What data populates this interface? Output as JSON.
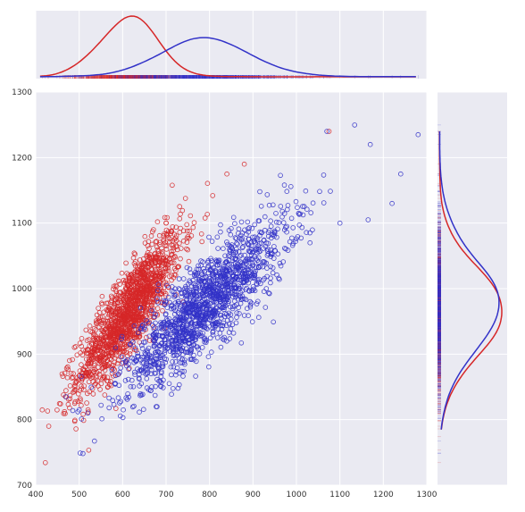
{
  "chart_data": {
    "type": "scatter",
    "subtype": "jointplot",
    "xlim": [
      400,
      1300
    ],
    "ylim": [
      700,
      1300
    ],
    "x_ticks": [
      400,
      500,
      600,
      700,
      800,
      900,
      1000,
      1100,
      1200,
      1300
    ],
    "y_ticks": [
      700,
      800,
      900,
      1000,
      1100,
      1200,
      1300
    ],
    "grid": true,
    "marginals": {
      "top": "kde + rug of x per series",
      "right": "kde + rug of y per series"
    },
    "series": [
      {
        "color": "#d62728",
        "marker": "open-circle",
        "n_points": 1500,
        "x_center": 615,
        "y_center": 965,
        "x_sd": 60,
        "y_sd": 60,
        "correlation": 0.85,
        "x_mode": 610,
        "y_mode": 960,
        "points": [
          [
            430,
            790
          ],
          [
            415,
            815
          ],
          [
            1075,
            1240
          ],
          [
            840,
            1175
          ],
          [
            880,
            1190
          ],
          [
            700,
            1100
          ]
        ]
      },
      {
        "color": "#3232c8",
        "marker": "open-circle",
        "n_points": 1500,
        "x_center": 790,
        "y_center": 975,
        "x_sd": 95,
        "y_sd": 65,
        "correlation": 0.85,
        "x_mode": 755,
        "y_mode": 980,
        "points": [
          [
            1280,
            1235
          ],
          [
            1170,
            1220
          ],
          [
            1070,
            1240
          ],
          [
            1240,
            1175
          ],
          [
            1220,
            1130
          ],
          [
            1100,
            1100
          ],
          [
            1165,
            1105
          ],
          [
            1005,
            1115
          ],
          [
            950,
            1085
          ],
          [
            500,
            815
          ],
          [
            520,
            810
          ],
          [
            470,
            835
          ]
        ]
      }
    ]
  }
}
